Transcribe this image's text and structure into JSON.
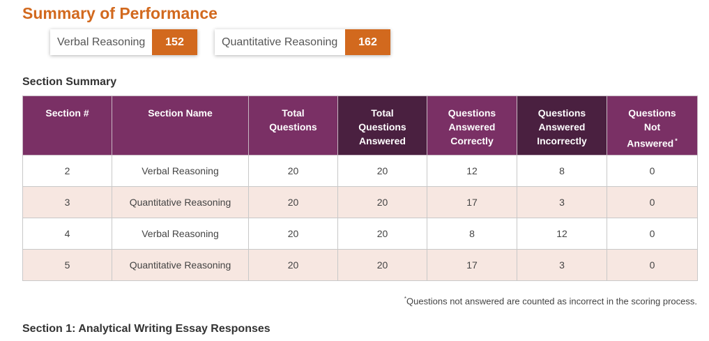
{
  "page_title": "Summary of Performance",
  "scores": [
    {
      "label": "Verbal Reasoning",
      "value": "152"
    },
    {
      "label": "Quantitative Reasoning",
      "value": "162"
    }
  ],
  "section_summary": {
    "heading": "Section Summary",
    "columns": [
      {
        "label": "Section #"
      },
      {
        "label": "Section Name"
      },
      {
        "label": "Total Questions"
      },
      {
        "label": "Total Questions Answered"
      },
      {
        "label": "Questions Answered Correctly"
      },
      {
        "label": "Questions Answered Incorrectly"
      },
      {
        "label": "Questions Not Answered",
        "marker": "*"
      }
    ],
    "rows": [
      [
        "2",
        "Verbal Reasoning",
        "20",
        "20",
        "12",
        "8",
        "0"
      ],
      [
        "3",
        "Quantitative Reasoning",
        "20",
        "20",
        "17",
        "3",
        "0"
      ],
      [
        "4",
        "Verbal Reasoning",
        "20",
        "20",
        "8",
        "12",
        "0"
      ],
      [
        "5",
        "Quantitative Reasoning",
        "20",
        "20",
        "17",
        "3",
        "0"
      ]
    ],
    "footnote_marker": "*",
    "footnote": "Questions not answered are counted as incorrect in the scoring process."
  },
  "essay_heading": "Section 1: Analytical Writing Essay Responses",
  "colors": {
    "accent": "#d2691e",
    "header_purple": "#7a3065",
    "header_dark_purple": "#4a2040",
    "stripe": "#f7e7e1"
  }
}
